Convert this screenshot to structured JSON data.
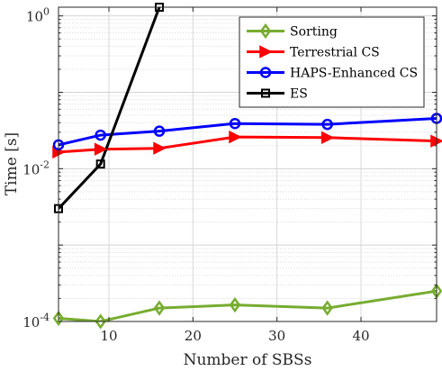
{
  "chart_data": {
    "type": "line",
    "xlabel": "Number of SBSs",
    "ylabel": "Time [s]",
    "xlim": [
      4,
      49
    ],
    "ylim": [
      0.0001,
      1.3
    ],
    "y_scale": "log",
    "grid": true,
    "legend_position": "top-right",
    "x_ticks": [
      10,
      20,
      30,
      40
    ],
    "y_ticks": [
      {
        "value": 0.0001,
        "base": "10",
        "exp": "-4"
      },
      {
        "value": 0.01,
        "base": "10",
        "exp": "-2"
      },
      {
        "value": 1,
        "base": "10",
        "exp": "0"
      }
    ],
    "series": [
      {
        "name": "Sorting",
        "color": "#77ac30",
        "marker": "diamond",
        "x": [
          4,
          9,
          16,
          25,
          36,
          49
        ],
        "y": [
          0.00011,
          0.0001,
          0.00015,
          0.000165,
          0.00015,
          0.00025
        ]
      },
      {
        "name": "Terrestrial CS",
        "color": "#ff0000",
        "marker": "triangle-right",
        "x": [
          4,
          9,
          16,
          25,
          36,
          49
        ],
        "y": [
          0.0165,
          0.018,
          0.0185,
          0.026,
          0.0255,
          0.023
        ]
      },
      {
        "name": "HAPS-Enhanced CS",
        "color": "#0000ff",
        "marker": "circle",
        "x": [
          4,
          9,
          16,
          25,
          36,
          49
        ],
        "y": [
          0.0205,
          0.0275,
          0.031,
          0.039,
          0.038,
          0.0455
        ]
      },
      {
        "name": "ES",
        "color": "#000000",
        "marker": "square",
        "x": [
          4,
          9,
          16
        ],
        "y": [
          0.003,
          0.0115,
          1.3
        ]
      }
    ]
  }
}
